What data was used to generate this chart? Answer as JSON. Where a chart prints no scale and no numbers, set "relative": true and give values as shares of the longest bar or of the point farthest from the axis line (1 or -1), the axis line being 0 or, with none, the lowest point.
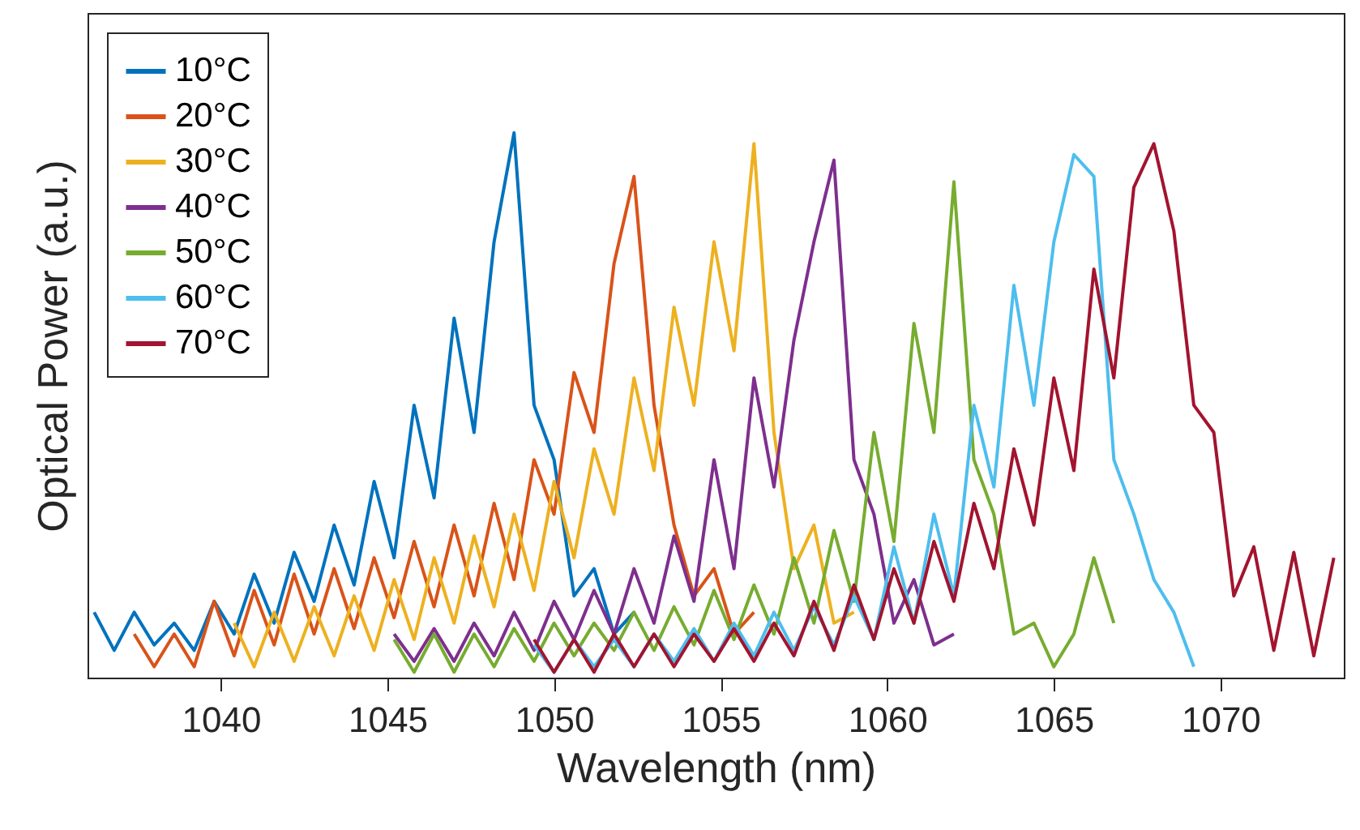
{
  "chart_data": {
    "type": "line",
    "relative": true,
    "xlabel": "Wavelength (nm)",
    "ylabel": "Optical Power (a.u.)",
    "xlim": [
      1036,
      1073.7
    ],
    "xticks": [
      1040,
      1045,
      1050,
      1055,
      1060,
      1065,
      1070
    ],
    "legend": "top left",
    "grid": false,
    "line_style": "solid",
    "x": [
      1036.2,
      1036.8,
      1037.4,
      1038.0,
      1038.6,
      1039.2,
      1039.8,
      1040.4,
      1041.0,
      1041.6,
      1042.2,
      1042.8,
      1043.4,
      1044.0,
      1044.6,
      1045.2,
      1045.8,
      1046.4,
      1047.0,
      1047.6,
      1048.2,
      1048.8,
      1049.4,
      1050.0,
      1050.6,
      1051.2,
      1051.8,
      1052.4,
      1053.0,
      1053.6,
      1054.2,
      1054.8,
      1055.4,
      1056.0,
      1056.6,
      1057.2,
      1057.8,
      1058.4,
      1059.0,
      1059.6,
      1060.2,
      1060.8,
      1061.4,
      1062.0,
      1062.6,
      1063.2,
      1063.8,
      1064.4,
      1065.0,
      1065.6,
      1066.2,
      1066.8,
      1067.4,
      1068.0,
      1068.6,
      1069.2,
      1069.8,
      1070.4,
      1071.0,
      1071.6,
      1072.2,
      1072.8,
      1073.4
    ],
    "series": [
      {
        "name": "10°C",
        "color": "#0072bd",
        "values": [
          0.12,
          0.05,
          0.12,
          0.06,
          0.1,
          0.05,
          0.14,
          0.08,
          0.19,
          0.1,
          0.23,
          0.14,
          0.28,
          0.17,
          0.36,
          0.22,
          0.5,
          0.33,
          0.66,
          0.45,
          0.8,
          1.0,
          0.5,
          0.4,
          0.15,
          0.2,
          0.08,
          0.12,
          null,
          null,
          null,
          null,
          null,
          null,
          null,
          null,
          null,
          null,
          null,
          null,
          null,
          null,
          null,
          null,
          null,
          null,
          null,
          null,
          null,
          null,
          null,
          null,
          null,
          null,
          null,
          null,
          null,
          null,
          null,
          null,
          null,
          null,
          null
        ]
      },
      {
        "name": "20°C",
        "color": "#d95319",
        "values": [
          null,
          null,
          0.08,
          0.02,
          0.08,
          0.02,
          0.14,
          0.04,
          0.16,
          0.06,
          0.19,
          0.08,
          0.2,
          0.09,
          0.22,
          0.11,
          0.25,
          0.13,
          0.28,
          0.15,
          0.32,
          0.18,
          0.4,
          0.3,
          0.56,
          0.45,
          0.76,
          0.92,
          0.5,
          0.28,
          0.15,
          0.2,
          0.08,
          0.12,
          null,
          null,
          null,
          null,
          null,
          null,
          null,
          null,
          null,
          null,
          null,
          null,
          null,
          null,
          null,
          null,
          null,
          null,
          null,
          null,
          null,
          null,
          null,
          null,
          null,
          null,
          null,
          null,
          null
        ]
      },
      {
        "name": "30°C",
        "color": "#edb120",
        "values": [
          null,
          null,
          null,
          null,
          null,
          null,
          null,
          0.1,
          0.02,
          0.12,
          0.03,
          0.13,
          0.04,
          0.15,
          0.05,
          0.18,
          0.07,
          0.22,
          0.1,
          0.26,
          0.13,
          0.3,
          0.16,
          0.36,
          0.22,
          0.42,
          0.3,
          0.55,
          0.38,
          0.68,
          0.5,
          0.8,
          0.6,
          0.98,
          0.45,
          0.2,
          0.28,
          0.1,
          0.12,
          null,
          null,
          null,
          null,
          null,
          null,
          null,
          null,
          null,
          null,
          null,
          null,
          null,
          null,
          null,
          null,
          null,
          null,
          null,
          null,
          null,
          null,
          null,
          null
        ]
      },
      {
        "name": "40°C",
        "color": "#7e2f8e",
        "values": [
          null,
          null,
          null,
          null,
          null,
          null,
          null,
          null,
          null,
          null,
          null,
          null,
          null,
          null,
          null,
          0.08,
          0.03,
          0.09,
          0.03,
          0.1,
          0.04,
          0.12,
          0.05,
          0.14,
          0.07,
          0.16,
          0.08,
          0.2,
          0.1,
          0.26,
          0.14,
          0.4,
          0.2,
          0.55,
          0.35,
          0.62,
          0.8,
          0.95,
          0.4,
          0.3,
          0.1,
          0.18,
          0.06,
          0.08,
          null,
          null,
          null,
          null,
          null,
          null,
          null,
          null,
          null,
          null,
          null,
          null,
          null,
          null,
          null,
          null,
          null,
          null,
          null
        ]
      },
      {
        "name": "50°C",
        "color": "#77ac30",
        "values": [
          null,
          null,
          null,
          null,
          null,
          null,
          null,
          null,
          null,
          null,
          null,
          null,
          null,
          null,
          null,
          0.07,
          0.01,
          0.08,
          0.01,
          0.08,
          0.02,
          0.09,
          0.03,
          0.1,
          0.04,
          0.1,
          0.05,
          0.12,
          0.05,
          0.13,
          0.06,
          0.16,
          0.07,
          0.17,
          0.08,
          0.22,
          0.1,
          0.27,
          0.14,
          0.45,
          0.25,
          0.65,
          0.45,
          0.91,
          0.4,
          0.3,
          0.08,
          0.1,
          0.02,
          0.08,
          0.22,
          0.1,
          null,
          null,
          null,
          null,
          null,
          null,
          null,
          null,
          null,
          null,
          null
        ]
      },
      {
        "name": "60°C",
        "color": "#4dbeee",
        "values": [
          null,
          null,
          null,
          null,
          null,
          null,
          null,
          null,
          null,
          null,
          null,
          null,
          null,
          null,
          null,
          null,
          null,
          null,
          null,
          null,
          null,
          null,
          0.06,
          0.01,
          0.07,
          0.02,
          0.07,
          0.02,
          0.08,
          0.03,
          0.09,
          0.03,
          0.1,
          0.04,
          0.12,
          0.05,
          0.13,
          0.06,
          0.15,
          0.07,
          0.24,
          0.1,
          0.3,
          0.15,
          0.5,
          0.35,
          0.72,
          0.5,
          0.8,
          0.96,
          0.92,
          0.4,
          0.3,
          0.18,
          0.12,
          0.02,
          null,
          null,
          null,
          null,
          null,
          null,
          null
        ]
      },
      {
        "name": "70°C",
        "color": "#a2142f",
        "values": [
          null,
          null,
          null,
          null,
          null,
          null,
          null,
          null,
          null,
          null,
          null,
          null,
          null,
          null,
          null,
          null,
          null,
          null,
          null,
          null,
          null,
          null,
          0.07,
          0.01,
          0.07,
          0.01,
          0.08,
          0.02,
          0.08,
          0.02,
          0.08,
          0.03,
          0.09,
          0.03,
          0.1,
          0.04,
          0.14,
          0.05,
          0.17,
          0.07,
          0.2,
          0.1,
          0.25,
          0.14,
          0.32,
          0.2,
          0.42,
          0.28,
          0.55,
          0.38,
          0.75,
          0.55,
          0.9,
          0.98,
          0.82,
          0.5,
          0.45,
          0.15,
          0.24,
          0.05,
          0.23,
          0.04,
          0.22
        ]
      }
    ]
  }
}
